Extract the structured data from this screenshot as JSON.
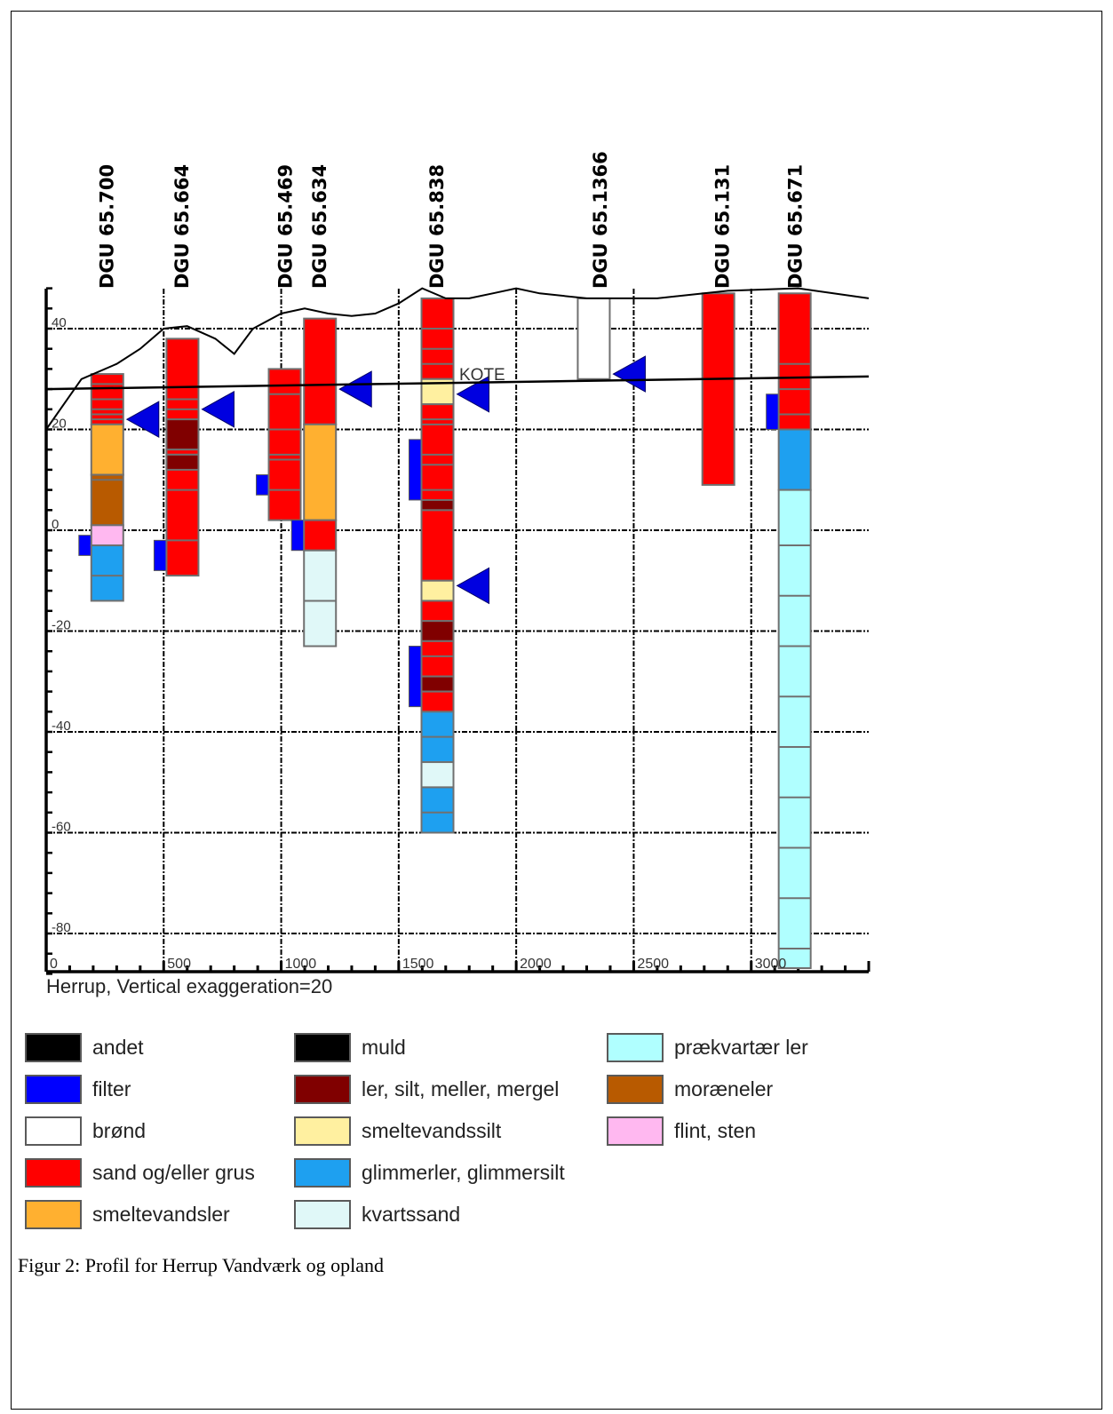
{
  "caption": "Figur 2: Profil for Herrup Vandværk og opland",
  "subtitle": "Herrup, Vertical exaggeration=20",
  "kote_label": "KOTE",
  "axis": {
    "y_ticks": [
      "40",
      "20",
      "0",
      "-20",
      "-40",
      "-60",
      "-80"
    ],
    "y_values": [
      40,
      20,
      0,
      -20,
      -40,
      -60,
      -80
    ],
    "x_ticks": [
      "0",
      "500",
      "1000",
      "1500",
      "2000",
      "2500",
      "3000"
    ],
    "x_values": [
      0,
      500,
      1000,
      1500,
      2000,
      2500,
      3000
    ],
    "xlim": [
      0,
      3500
    ],
    "ylim": [
      -88,
      48
    ]
  },
  "colors": {
    "andet": "#000000",
    "filter": "#0000ff",
    "brond": "#ffffff",
    "sand": "#ff0000",
    "smeltevandsler": "#ffb030",
    "muld": "#000000",
    "ler": "#800000",
    "smeltevandssilt": "#fff0a0",
    "glimmerler": "#1ea0f0",
    "kvartssand": "#e0f8f8",
    "praekvartaer": "#b0ffff",
    "moraeneler": "#b85a00",
    "flint": "#ffb8f0",
    "water": "#0000e0",
    "outline": "#707070"
  },
  "legend": [
    {
      "label": "andet",
      "color": "andet"
    },
    {
      "label": "filter",
      "color": "filter"
    },
    {
      "label": "brønd",
      "color": "brond"
    },
    {
      "label": "sand og/eller grus",
      "color": "sand"
    },
    {
      "label": "smeltevandsler",
      "color": "smeltevandsler"
    },
    {
      "label": "muld",
      "color": "muld"
    },
    {
      "label": "ler, silt, meller, mergel",
      "color": "ler"
    },
    {
      "label": "smeltevandssilt",
      "color": "smeltevandssilt"
    },
    {
      "label": "glimmerler, glimmersilt",
      "color": "glimmerler"
    },
    {
      "label": "kvartssand",
      "color": "kvartssand"
    },
    {
      "label": "prækvartær ler",
      "color": "praekvartaer"
    },
    {
      "label": "moræneler",
      "color": "moraeneler"
    },
    {
      "label": "flint, sten",
      "color": "flint"
    }
  ],
  "wells": [
    {
      "name": "DGU 65.700",
      "x": 260,
      "layers": [
        {
          "top": 31,
          "bot": 21,
          "type": "sand",
          "lines": [
            29,
            26,
            24,
            23,
            22
          ]
        },
        {
          "top": 21,
          "bot": 11,
          "type": "smeltevandsler",
          "lines": []
        },
        {
          "top": 11,
          "bot": 1,
          "type": "moraeneler",
          "lines": [
            10
          ]
        },
        {
          "top": 1,
          "bot": -3,
          "type": "flint",
          "lines": []
        },
        {
          "top": -3,
          "bot": -14,
          "type": "glimmerler",
          "lines": [
            -9
          ]
        }
      ],
      "filters": [
        {
          "top": -1,
          "bot": -5
        }
      ],
      "water": 22
    },
    {
      "name": "DGU 65.664",
      "x": 580,
      "layers": [
        {
          "top": 38,
          "bot": -9,
          "type": "sand",
          "lines": [
            26,
            8,
            -2
          ]
        },
        {
          "top": 24,
          "bot": 22,
          "type": "sand",
          "lines": []
        },
        {
          "top": 22,
          "bot": 16,
          "type": "ler",
          "lines": []
        },
        {
          "top": 16,
          "bot": 15,
          "type": "sand",
          "lines": []
        },
        {
          "top": 15,
          "bot": 12,
          "type": "ler",
          "lines": []
        }
      ],
      "filters": [
        {
          "top": -2,
          "bot": -8
        }
      ],
      "water": 24
    },
    {
      "name": "DGU 65.469",
      "x": 1015,
      "layers": [
        {
          "top": 32,
          "bot": 2,
          "type": "sand",
          "lines": [
            27,
            20,
            15,
            14,
            8
          ]
        }
      ],
      "filters": [
        {
          "top": 11,
          "bot": 7
        }
      ],
      "water": null
    },
    {
      "name": "DGU 65.634",
      "x": 1165,
      "layers": [
        {
          "top": 42,
          "bot": 21,
          "type": "sand",
          "lines": []
        },
        {
          "top": 21,
          "bot": 2,
          "type": "smeltevandsler",
          "lines": []
        },
        {
          "top": 2,
          "bot": -4,
          "type": "sand",
          "lines": []
        },
        {
          "top": -4,
          "bot": -23,
          "type": "kvartssand",
          "lines": [
            -14
          ]
        }
      ],
      "filters": [
        {
          "top": 2,
          "bot": -4
        }
      ],
      "water": 28
    },
    {
      "name": "DGU 65.838",
      "x": 1665,
      "layers": [
        {
          "top": 46,
          "bot": 30,
          "type": "sand",
          "lines": [
            40,
            36,
            33
          ]
        },
        {
          "top": 30,
          "bot": 25,
          "type": "smeltevandssilt",
          "lines": []
        },
        {
          "top": 25,
          "bot": -10,
          "type": "sand",
          "lines": [
            22,
            21,
            15,
            13,
            8,
            4
          ]
        },
        {
          "top": 6,
          "bot": 4,
          "type": "ler",
          "lines": []
        },
        {
          "top": -10,
          "bot": -14,
          "type": "smeltevandssilt",
          "lines": []
        },
        {
          "top": -14,
          "bot": -18,
          "type": "sand",
          "lines": []
        },
        {
          "top": -18,
          "bot": -22,
          "type": "ler",
          "lines": []
        },
        {
          "top": -22,
          "bot": -29,
          "type": "sand",
          "lines": [
            -25
          ]
        },
        {
          "top": -29,
          "bot": -32,
          "type": "ler",
          "lines": []
        },
        {
          "top": -32,
          "bot": -36,
          "type": "sand",
          "lines": []
        },
        {
          "top": -36,
          "bot": -46,
          "type": "glimmerler",
          "lines": [
            -41
          ]
        },
        {
          "top": -46,
          "bot": -51,
          "type": "kvartssand",
          "lines": []
        },
        {
          "top": -51,
          "bot": -60,
          "type": "glimmerler",
          "lines": [
            -56
          ]
        }
      ],
      "filters": [
        {
          "top": 18,
          "bot": 6
        },
        {
          "top": -23,
          "bot": -35
        }
      ],
      "water": [
        27,
        -11
      ]
    },
    {
      "name": "DGU 65.1366",
      "x": 2330,
      "layers": [
        {
          "top": 46,
          "bot": 30,
          "type": "brond",
          "lines": []
        }
      ],
      "filters": [],
      "water": 31
    },
    {
      "name": "DGU 65.131",
      "x": 2860,
      "layers": [
        {
          "top": 47,
          "bot": 9,
          "type": "sand",
          "lines": []
        }
      ],
      "filters": [],
      "water": null
    },
    {
      "name": "DGU 65.671",
      "x": 3185,
      "layers": [
        {
          "top": 47,
          "bot": 20,
          "type": "sand",
          "lines": [
            33,
            28,
            23
          ]
        },
        {
          "top": 20,
          "bot": 8,
          "type": "glimmerler",
          "lines": []
        },
        {
          "top": 8,
          "bot": -90,
          "type": "praekvartaer",
          "lines": [
            -3,
            -13,
            -23,
            -33,
            -43,
            -53,
            -63,
            -73,
            -83
          ]
        }
      ],
      "filters": [
        {
          "top": 27,
          "bot": 20
        }
      ],
      "water": null
    }
  ],
  "well_label_x": [
    270,
    590,
    1030,
    1175,
    1675,
    2370,
    2890,
    3200
  ],
  "terrain": [
    [
      0,
      20
    ],
    [
      150,
      30
    ],
    [
      300,
      33
    ],
    [
      400,
      36
    ],
    [
      500,
      40
    ],
    [
      600,
      40.5
    ],
    [
      720,
      38
    ],
    [
      800,
      35
    ],
    [
      880,
      40
    ],
    [
      1000,
      43
    ],
    [
      1100,
      44
    ],
    [
      1200,
      43
    ],
    [
      1300,
      42.5
    ],
    [
      1400,
      43
    ],
    [
      1500,
      45
    ],
    [
      1600,
      48
    ],
    [
      1700,
      46
    ],
    [
      1800,
      46
    ],
    [
      1900,
      47
    ],
    [
      2000,
      48
    ],
    [
      2100,
      47
    ],
    [
      2300,
      46
    ],
    [
      2600,
      46
    ],
    [
      2900,
      47.5
    ],
    [
      3200,
      48
    ],
    [
      3500,
      46
    ]
  ],
  "kote_line": [
    [
      0,
      28
    ],
    [
      3500,
      30.5
    ]
  ]
}
